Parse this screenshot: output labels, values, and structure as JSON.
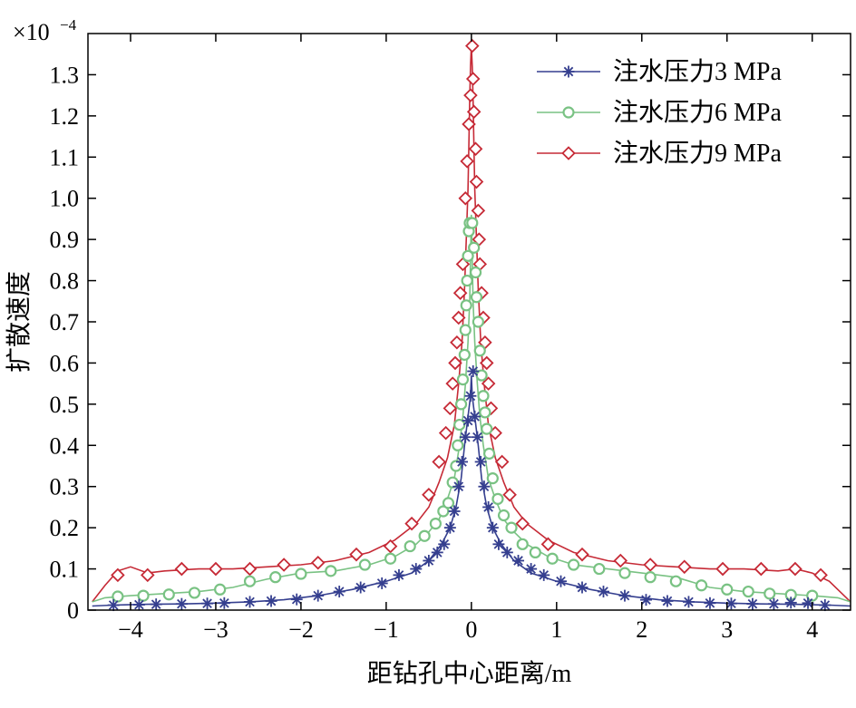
{
  "chart_data": {
    "type": "line",
    "title": "",
    "xlabel": "距钻孔中心距离/m",
    "ylabel": "扩散速度",
    "y_multiplier_label": "×10",
    "y_multiplier_exponent": "−4",
    "xlim": [
      -4.5,
      4.45
    ],
    "ylim": [
      0,
      1.4
    ],
    "x_ticks": [
      -4,
      -3,
      -2,
      -1,
      0,
      1,
      2,
      3,
      4
    ],
    "x_tick_labels": [
      "−4",
      "−3",
      "−2",
      "−1",
      "0",
      "1",
      "2",
      "3",
      "4"
    ],
    "y_ticks": [
      0,
      0.1,
      0.2,
      0.3,
      0.4,
      0.5,
      0.6,
      0.7,
      0.8,
      0.9,
      1.0,
      1.1,
      1.2,
      1.3
    ],
    "y_tick_labels": [
      "0",
      "0.1",
      "0.2",
      "0.3",
      "0.4",
      "0.5",
      "0.6",
      "0.7",
      "0.8",
      "0.9",
      "1.0",
      "1.1",
      "1.2",
      "1.3"
    ],
    "grid": false,
    "legend_position": "top-right",
    "series": [
      {
        "name": "注水压力3 MPa",
        "color": "#353f8f",
        "marker": "asterisk",
        "line": [
          [
            -4.45,
            0.01
          ],
          [
            -4.2,
            0.012
          ],
          [
            -3.8,
            0.014
          ],
          [
            -3.4,
            0.015
          ],
          [
            -3.0,
            0.017
          ],
          [
            -2.6,
            0.02
          ],
          [
            -2.2,
            0.025
          ],
          [
            -1.8,
            0.035
          ],
          [
            -1.4,
            0.05
          ],
          [
            -1.0,
            0.07
          ],
          [
            -0.7,
            0.09
          ],
          [
            -0.5,
            0.12
          ],
          [
            -0.35,
            0.16
          ],
          [
            -0.25,
            0.2
          ],
          [
            -0.18,
            0.25
          ],
          [
            -0.12,
            0.32
          ],
          [
            -0.08,
            0.4
          ],
          [
            -0.04,
            0.47
          ],
          [
            -0.01,
            0.52
          ],
          [
            0.0,
            0.57
          ],
          [
            0.01,
            0.52
          ],
          [
            0.04,
            0.47
          ],
          [
            0.08,
            0.4
          ],
          [
            0.12,
            0.32
          ],
          [
            0.18,
            0.25
          ],
          [
            0.25,
            0.2
          ],
          [
            0.35,
            0.16
          ],
          [
            0.5,
            0.12
          ],
          [
            0.7,
            0.09
          ],
          [
            1.0,
            0.07
          ],
          [
            1.4,
            0.05
          ],
          [
            1.8,
            0.035
          ],
          [
            2.2,
            0.025
          ],
          [
            2.6,
            0.02
          ],
          [
            3.0,
            0.017
          ],
          [
            3.4,
            0.015
          ],
          [
            3.8,
            0.014
          ],
          [
            4.2,
            0.012
          ],
          [
            4.45,
            0.01
          ]
        ],
        "markers": [
          [
            -4.2,
            0.012
          ],
          [
            -3.9,
            0.013
          ],
          [
            -3.7,
            0.014
          ],
          [
            -3.4,
            0.015
          ],
          [
            -3.1,
            0.016
          ],
          [
            -2.9,
            0.017
          ],
          [
            -2.6,
            0.02
          ],
          [
            -2.35,
            0.022
          ],
          [
            -2.05,
            0.026
          ],
          [
            -1.8,
            0.035
          ],
          [
            -1.55,
            0.045
          ],
          [
            -1.3,
            0.055
          ],
          [
            -1.05,
            0.065
          ],
          [
            -0.85,
            0.085
          ],
          [
            -0.65,
            0.1
          ],
          [
            -0.5,
            0.12
          ],
          [
            -0.4,
            0.14
          ],
          [
            -0.32,
            0.16
          ],
          [
            -0.25,
            0.2
          ],
          [
            -0.2,
            0.24
          ],
          [
            -0.15,
            0.3
          ],
          [
            -0.11,
            0.36
          ],
          [
            -0.07,
            0.42
          ],
          [
            -0.04,
            0.46
          ],
          [
            -0.01,
            0.52
          ],
          [
            0.02,
            0.58
          ],
          [
            0.04,
            0.47
          ],
          [
            0.07,
            0.42
          ],
          [
            0.11,
            0.36
          ],
          [
            0.15,
            0.3
          ],
          [
            0.2,
            0.25
          ],
          [
            0.25,
            0.2
          ],
          [
            0.32,
            0.16
          ],
          [
            0.42,
            0.14
          ],
          [
            0.55,
            0.12
          ],
          [
            0.7,
            0.1
          ],
          [
            0.85,
            0.085
          ],
          [
            1.05,
            0.07
          ],
          [
            1.3,
            0.055
          ],
          [
            1.55,
            0.045
          ],
          [
            1.8,
            0.035
          ],
          [
            2.05,
            0.025
          ],
          [
            2.3,
            0.022
          ],
          [
            2.55,
            0.02
          ],
          [
            2.8,
            0.017
          ],
          [
            3.05,
            0.016
          ],
          [
            3.3,
            0.015
          ],
          [
            3.55,
            0.015
          ],
          [
            3.75,
            0.018
          ],
          [
            3.95,
            0.017
          ],
          [
            4.15,
            0.012
          ]
        ]
      },
      {
        "name": "注水压力6 MPa",
        "color": "#79c283",
        "marker": "circle",
        "line": [
          [
            -4.45,
            0.02
          ],
          [
            -4.3,
            0.03
          ],
          [
            -4.0,
            0.035
          ],
          [
            -3.6,
            0.04
          ],
          [
            -3.2,
            0.045
          ],
          [
            -2.8,
            0.055
          ],
          [
            -2.4,
            0.075
          ],
          [
            -2.0,
            0.09
          ],
          [
            -1.6,
            0.095
          ],
          [
            -1.2,
            0.11
          ],
          [
            -0.9,
            0.13
          ],
          [
            -0.65,
            0.16
          ],
          [
            -0.5,
            0.19
          ],
          [
            -0.38,
            0.22
          ],
          [
            -0.28,
            0.27
          ],
          [
            -0.2,
            0.32
          ],
          [
            -0.14,
            0.4
          ],
          [
            -0.1,
            0.47
          ],
          [
            -0.07,
            0.55
          ],
          [
            -0.04,
            0.65
          ],
          [
            -0.02,
            0.75
          ],
          [
            -0.01,
            0.85
          ],
          [
            0.0,
            0.96
          ],
          [
            0.01,
            0.85
          ],
          [
            0.02,
            0.75
          ],
          [
            0.04,
            0.65
          ],
          [
            0.07,
            0.55
          ],
          [
            0.1,
            0.47
          ],
          [
            0.14,
            0.4
          ],
          [
            0.2,
            0.32
          ],
          [
            0.28,
            0.27
          ],
          [
            0.38,
            0.22
          ],
          [
            0.5,
            0.19
          ],
          [
            0.65,
            0.16
          ],
          [
            0.9,
            0.13
          ],
          [
            1.2,
            0.11
          ],
          [
            1.6,
            0.1
          ],
          [
            2.0,
            0.09
          ],
          [
            2.4,
            0.08
          ],
          [
            2.8,
            0.055
          ],
          [
            3.2,
            0.045
          ],
          [
            3.6,
            0.04
          ],
          [
            4.0,
            0.035
          ],
          [
            4.3,
            0.03
          ],
          [
            4.45,
            0.02
          ]
        ],
        "markers": [
          [
            -4.15,
            0.033
          ],
          [
            -3.85,
            0.035
          ],
          [
            -3.55,
            0.038
          ],
          [
            -3.25,
            0.042
          ],
          [
            -2.95,
            0.05
          ],
          [
            -2.6,
            0.07
          ],
          [
            -2.3,
            0.08
          ],
          [
            -2.0,
            0.088
          ],
          [
            -1.65,
            0.095
          ],
          [
            -1.25,
            0.11
          ],
          [
            -0.95,
            0.125
          ],
          [
            -0.72,
            0.155
          ],
          [
            -0.55,
            0.18
          ],
          [
            -0.42,
            0.21
          ],
          [
            -0.33,
            0.24
          ],
          [
            -0.27,
            0.26
          ],
          [
            -0.22,
            0.31
          ],
          [
            -0.18,
            0.35
          ],
          [
            -0.16,
            0.4
          ],
          [
            -0.14,
            0.45
          ],
          [
            -0.12,
            0.5
          ],
          [
            -0.1,
            0.56
          ],
          [
            -0.08,
            0.62
          ],
          [
            -0.07,
            0.68
          ],
          [
            -0.06,
            0.74
          ],
          [
            -0.05,
            0.8
          ],
          [
            -0.04,
            0.86
          ],
          [
            -0.03,
            0.92
          ],
          [
            -0.02,
            0.94
          ],
          [
            0.01,
            0.94
          ],
          [
            0.03,
            0.88
          ],
          [
            0.05,
            0.82
          ],
          [
            0.06,
            0.76
          ],
          [
            0.08,
            0.7
          ],
          [
            0.1,
            0.63
          ],
          [
            0.12,
            0.57
          ],
          [
            0.14,
            0.52
          ],
          [
            0.16,
            0.48
          ],
          [
            0.18,
            0.44
          ],
          [
            0.21,
            0.38
          ],
          [
            0.25,
            0.32
          ],
          [
            0.31,
            0.27
          ],
          [
            0.38,
            0.23
          ],
          [
            0.47,
            0.2
          ],
          [
            0.6,
            0.16
          ],
          [
            0.75,
            0.14
          ],
          [
            0.95,
            0.125
          ],
          [
            1.2,
            0.11
          ],
          [
            1.5,
            0.1
          ],
          [
            1.8,
            0.09
          ],
          [
            2.1,
            0.08
          ],
          [
            2.4,
            0.07
          ],
          [
            2.7,
            0.06
          ],
          [
            3.0,
            0.05
          ],
          [
            3.25,
            0.045
          ],
          [
            3.5,
            0.04
          ],
          [
            3.75,
            0.037
          ],
          [
            4.0,
            0.035
          ]
        ]
      },
      {
        "name": "注水压力9 MPa",
        "color": "#c62a36",
        "marker": "diamond",
        "line": [
          [
            -4.45,
            0.02
          ],
          [
            -4.3,
            0.06
          ],
          [
            -4.15,
            0.095
          ],
          [
            -4.0,
            0.105
          ],
          [
            -3.8,
            0.09
          ],
          [
            -3.6,
            0.095
          ],
          [
            -3.2,
            0.1
          ],
          [
            -2.8,
            0.1
          ],
          [
            -2.4,
            0.105
          ],
          [
            -2.0,
            0.11
          ],
          [
            -1.6,
            0.12
          ],
          [
            -1.2,
            0.14
          ],
          [
            -0.9,
            0.17
          ],
          [
            -0.65,
            0.21
          ],
          [
            -0.5,
            0.25
          ],
          [
            -0.38,
            0.31
          ],
          [
            -0.28,
            0.37
          ],
          [
            -0.2,
            0.45
          ],
          [
            -0.15,
            0.55
          ],
          [
            -0.11,
            0.65
          ],
          [
            -0.08,
            0.78
          ],
          [
            -0.06,
            0.9
          ],
          [
            -0.04,
            1.02
          ],
          [
            -0.03,
            1.12
          ],
          [
            -0.02,
            1.24
          ],
          [
            -0.01,
            1.32
          ],
          [
            0.0,
            1.37
          ],
          [
            0.01,
            1.32
          ],
          [
            0.02,
            1.24
          ],
          [
            0.03,
            1.12
          ],
          [
            0.04,
            1.02
          ],
          [
            0.06,
            0.9
          ],
          [
            0.08,
            0.78
          ],
          [
            0.11,
            0.65
          ],
          [
            0.15,
            0.55
          ],
          [
            0.2,
            0.45
          ],
          [
            0.28,
            0.37
          ],
          [
            0.38,
            0.31
          ],
          [
            0.5,
            0.25
          ],
          [
            0.65,
            0.21
          ],
          [
            0.9,
            0.17
          ],
          [
            1.2,
            0.14
          ],
          [
            1.6,
            0.12
          ],
          [
            2.0,
            0.11
          ],
          [
            2.4,
            0.105
          ],
          [
            2.8,
            0.1
          ],
          [
            3.2,
            0.1
          ],
          [
            3.6,
            0.095
          ],
          [
            3.8,
            0.1
          ],
          [
            4.0,
            0.09
          ],
          [
            4.2,
            0.07
          ],
          [
            4.45,
            0.02
          ]
        ],
        "markers": [
          [
            -4.15,
            0.085
          ],
          [
            -3.8,
            0.085
          ],
          [
            -3.4,
            0.1
          ],
          [
            -3.0,
            0.1
          ],
          [
            -2.6,
            0.1
          ],
          [
            -2.2,
            0.11
          ],
          [
            -1.8,
            0.115
          ],
          [
            -1.35,
            0.135
          ],
          [
            -0.95,
            0.155
          ],
          [
            -0.7,
            0.21
          ],
          [
            -0.5,
            0.28
          ],
          [
            -0.38,
            0.36
          ],
          [
            -0.3,
            0.43
          ],
          [
            -0.25,
            0.49
          ],
          [
            -0.22,
            0.55
          ],
          [
            -0.19,
            0.6
          ],
          [
            -0.17,
            0.65
          ],
          [
            -0.15,
            0.71
          ],
          [
            -0.13,
            0.77
          ],
          [
            -0.1,
            0.84
          ],
          [
            -0.07,
            1.0
          ],
          [
            -0.05,
            1.09
          ],
          [
            -0.03,
            1.18
          ],
          [
            -0.01,
            1.25
          ],
          [
            0.01,
            1.37
          ],
          [
            0.02,
            1.29
          ],
          [
            0.03,
            1.21
          ],
          [
            0.05,
            1.12
          ],
          [
            0.06,
            1.04
          ],
          [
            0.08,
            0.97
          ],
          [
            0.09,
            0.9
          ],
          [
            0.1,
            0.84
          ],
          [
            0.12,
            0.77
          ],
          [
            0.14,
            0.71
          ],
          [
            0.16,
            0.65
          ],
          [
            0.18,
            0.6
          ],
          [
            0.2,
            0.55
          ],
          [
            0.23,
            0.49
          ],
          [
            0.28,
            0.43
          ],
          [
            0.36,
            0.36
          ],
          [
            0.45,
            0.28
          ],
          [
            0.6,
            0.21
          ],
          [
            0.9,
            0.16
          ],
          [
            1.3,
            0.135
          ],
          [
            1.75,
            0.12
          ],
          [
            2.1,
            0.11
          ],
          [
            2.5,
            0.105
          ],
          [
            2.95,
            0.1
          ],
          [
            3.4,
            0.1
          ],
          [
            3.8,
            0.1
          ],
          [
            4.1,
            0.085
          ]
        ]
      }
    ]
  }
}
